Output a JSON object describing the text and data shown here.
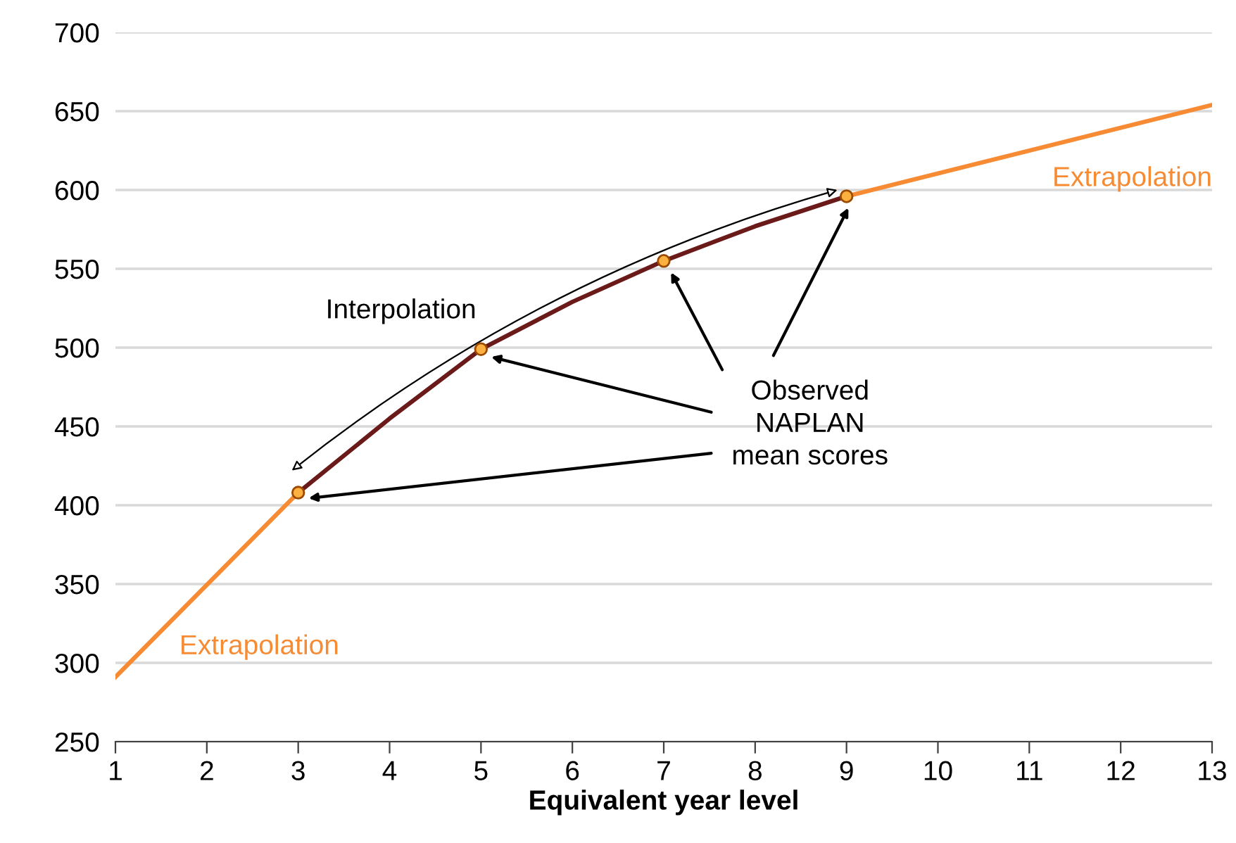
{
  "chart_data": {
    "type": "line",
    "xlabel": "Equivalent year level",
    "series": [
      {
        "color": "#f68b33",
        "x": [
          1,
          3
        ],
        "values": [
          291,
          408
        ]
      },
      {
        "color": "#f68b33",
        "x": [
          9,
          13
        ],
        "values": [
          596,
          654
        ]
      },
      {
        "color": "#6b1a1a",
        "x": [
          3,
          4,
          5,
          6,
          7,
          8,
          9
        ],
        "values": [
          408,
          455,
          499,
          529,
          555,
          577,
          596
        ]
      },
      {
        "type": "scatter",
        "color": "#fbb040",
        "marker": "circle",
        "x": [
          3,
          5,
          7,
          9
        ],
        "values": [
          408,
          499,
          555,
          596
        ]
      }
    ],
    "xlim": [
      1,
      13
    ],
    "xticks": [
      1,
      2,
      3,
      4,
      5,
      6,
      7,
      8,
      9,
      10,
      11,
      12,
      13
    ],
    "ylim": [
      250,
      700
    ],
    "yticks": [
      250,
      300,
      350,
      400,
      450,
      500,
      550,
      600,
      650,
      700
    ],
    "grid": "y",
    "annotations": [
      "Interpolation",
      "Observed\nNAPLAN\nmean scores",
      "Extrapolation",
      "Extrapolation"
    ]
  }
}
